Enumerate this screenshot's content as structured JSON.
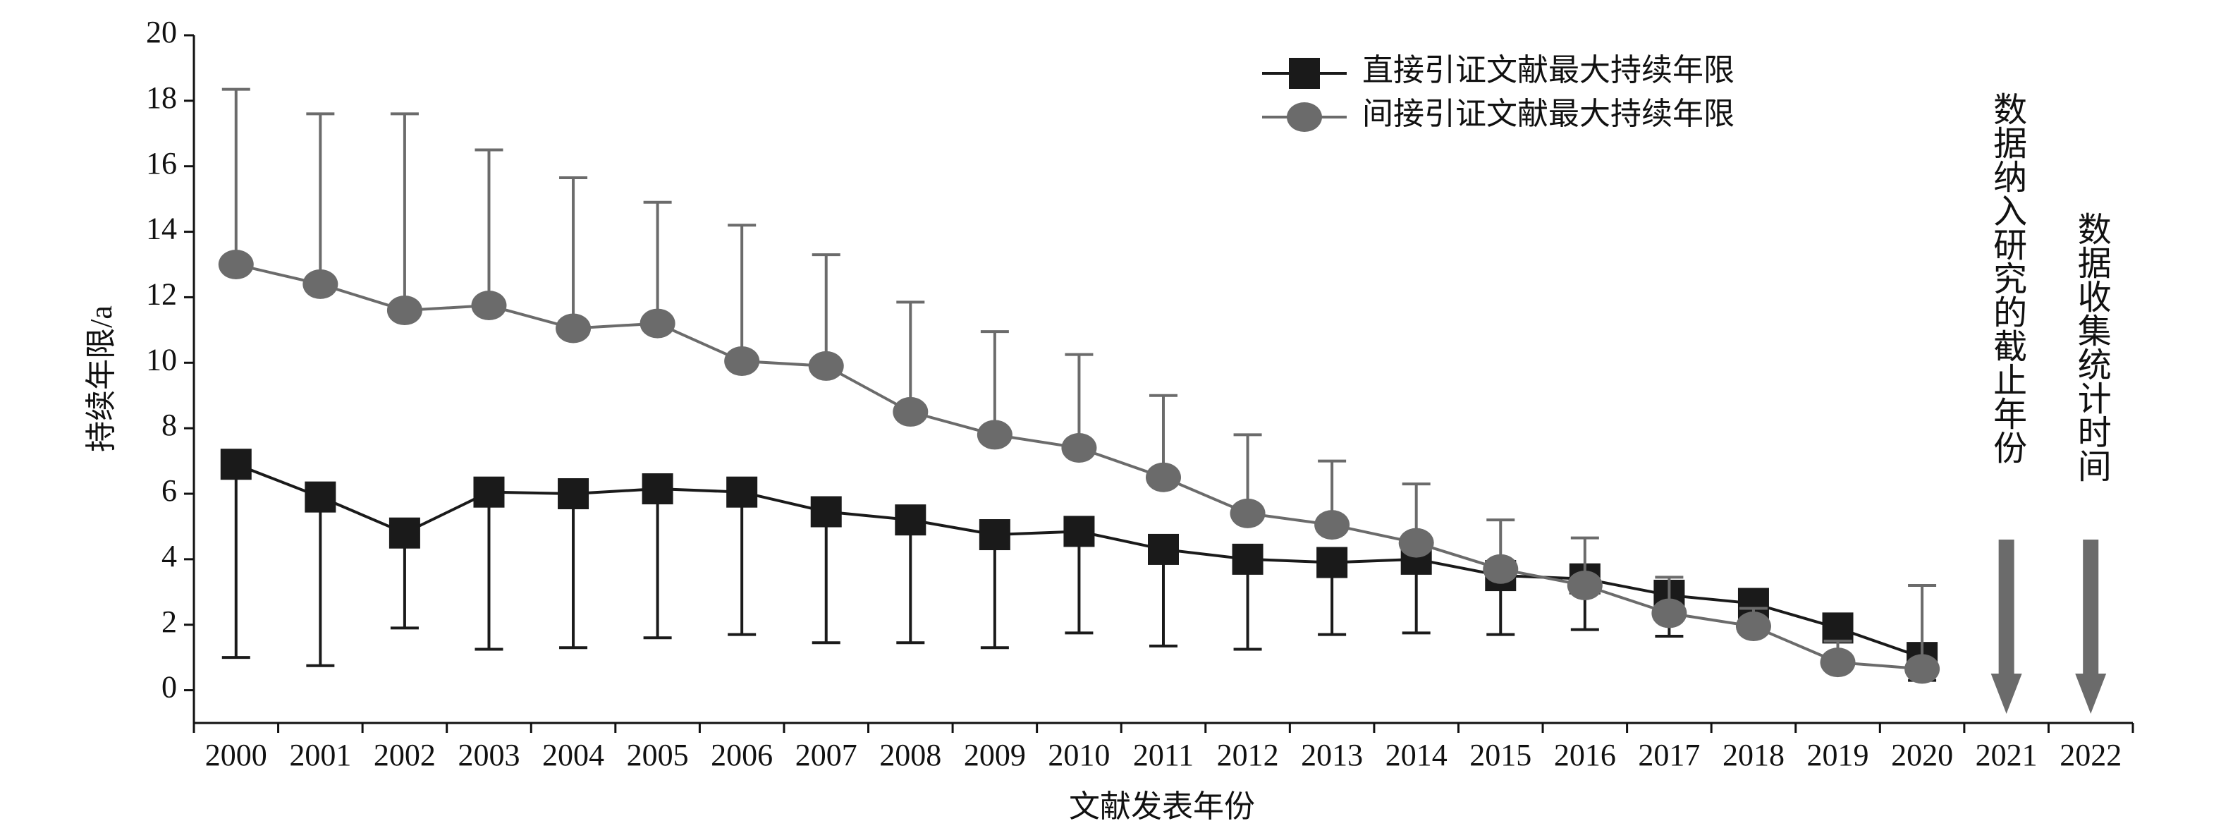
{
  "chart_data": {
    "type": "line",
    "x_label": "文献发表年份",
    "y_label": "持续年限/a",
    "categories": [
      "2000",
      "2001",
      "2002",
      "2003",
      "2004",
      "2005",
      "2006",
      "2007",
      "2008",
      "2009",
      "2010",
      "2011",
      "2012",
      "2013",
      "2014",
      "2015",
      "2016",
      "2017",
      "2018",
      "2019",
      "2020",
      "2021",
      "2022"
    ],
    "series": [
      {
        "name": "直接引证文献最大持续年限",
        "color": "#1a1a1a",
        "marker": "square",
        "error_direction": "down",
        "values": [
          6.9,
          5.9,
          4.8,
          6.05,
          6.0,
          6.15,
          6.05,
          5.45,
          5.2,
          4.75,
          4.85,
          4.3,
          4.0,
          3.9,
          4.0,
          3.5,
          3.4,
          2.9,
          2.65,
          1.9,
          1.0,
          null,
          null
        ],
        "errors": [
          5.9,
          5.15,
          2.9,
          4.8,
          4.7,
          4.55,
          4.35,
          4.0,
          3.75,
          3.45,
          3.1,
          2.95,
          2.75,
          2.2,
          2.25,
          1.8,
          1.55,
          1.25,
          0.5,
          0.3,
          0.7,
          null,
          null
        ]
      },
      {
        "name": "间接引证文献最大持续年限",
        "color": "#6b6b6b",
        "marker": "circle",
        "error_direction": "up",
        "values": [
          13.0,
          12.4,
          11.6,
          11.75,
          11.05,
          11.2,
          10.05,
          9.9,
          8.5,
          7.8,
          7.4,
          6.5,
          5.4,
          5.05,
          4.5,
          3.7,
          3.2,
          2.35,
          1.95,
          0.85,
          0.65,
          null,
          null
        ],
        "errors": [
          5.35,
          5.2,
          6.0,
          4.75,
          4.6,
          3.7,
          4.15,
          3.4,
          3.35,
          3.15,
          2.85,
          2.5,
          2.4,
          1.95,
          1.8,
          1.5,
          1.45,
          1.1,
          0.55,
          0.65,
          2.55,
          null,
          null
        ]
      }
    ],
    "ylim": [
      -1,
      20
    ],
    "yticks": [
      0,
      2,
      4,
      6,
      8,
      10,
      12,
      14,
      16,
      18,
      20
    ],
    "annotations": [
      {
        "text": "数据纳入研究的截止年份",
        "x": "2021"
      },
      {
        "text": "数据收集统计时间",
        "x": "2022"
      }
    ]
  }
}
